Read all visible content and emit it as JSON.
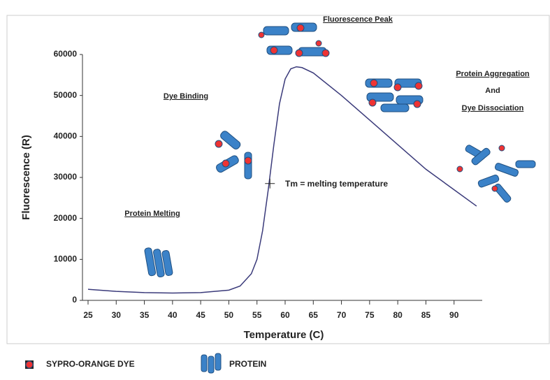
{
  "chart_data": {
    "type": "line",
    "x_label": "Temperature (C)",
    "y_label": "Fluorescence (R)",
    "x": [
      25,
      30,
      35,
      40,
      45,
      50,
      52,
      54,
      55,
      56,
      57,
      58,
      59,
      60,
      61,
      62,
      63,
      65,
      70,
      75,
      80,
      85,
      90,
      94
    ],
    "series": [
      {
        "color": "#3a3a7a",
        "values": [
          2700,
          2200,
          1900,
          1800,
          1900,
          2500,
          3500,
          6500,
          10000,
          17000,
          27000,
          38000,
          48000,
          54000,
          56500,
          57000,
          56800,
          55500,
          50000,
          44000,
          38000,
          32000,
          27000,
          23000
        ]
      }
    ],
    "xlim": [
      25,
      95
    ],
    "xticks": [
      25,
      30,
      35,
      40,
      45,
      50,
      55,
      60,
      65,
      70,
      75,
      80,
      85,
      90
    ],
    "ylim": [
      0,
      60000
    ],
    "yticks": [
      0,
      10000,
      20000,
      30000,
      40000,
      50000,
      60000
    ],
    "tm_marker": {
      "x": 57.3,
      "y": 28500
    },
    "annotations": [
      "Fluorescence Peak",
      "Dye Binding",
      "Protein Melting",
      "Protein Aggregation",
      "And",
      "Dye Dissociation",
      "Tm = melting temperature"
    ],
    "legend": [
      "SYPRO-ORANGE DYE",
      "PROTEIN"
    ]
  }
}
